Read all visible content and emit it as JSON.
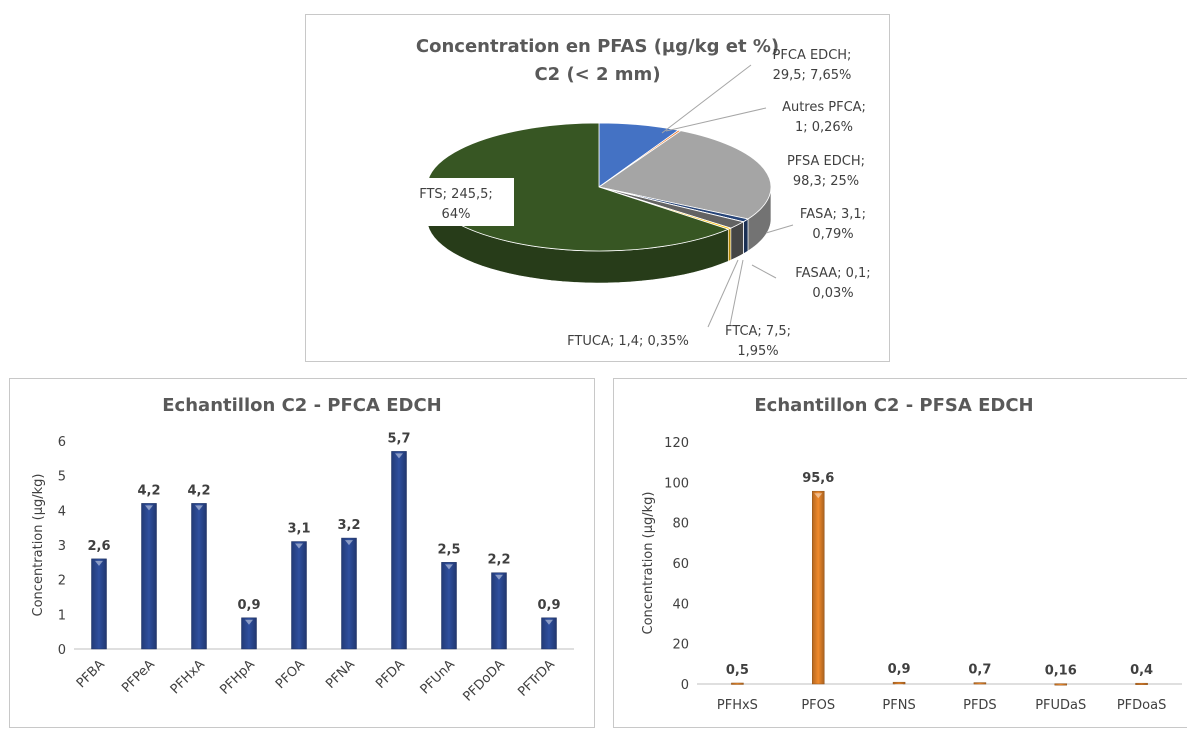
{
  "chart_data": [
    {
      "type": "pie",
      "title": "Concentration en PFAS (µg/kg et %)",
      "subtitle": "C2 (< 2 mm)",
      "slices": [
        {
          "name": "PFCA EDCH",
          "value": 29.5,
          "percent": 7.65,
          "label_line1": "PFCA EDCH;",
          "label_line2": "29,5; 7,65%",
          "color": "#4472c4"
        },
        {
          "name": "Autres PFCA",
          "value": 1,
          "percent": 0.26,
          "label_line1": "Autres PFCA;",
          "label_line2": "1; 0,26%",
          "color": "#ed7d31"
        },
        {
          "name": "PFSA EDCH",
          "value": 98.3,
          "percent": 25,
          "label_line1": "PFSA EDCH;",
          "label_line2": "98,3; 25%",
          "color": "#a5a5a5"
        },
        {
          "name": "FASA",
          "value": 3.1,
          "percent": 0.79,
          "label_line1": "FASA; 3,1;",
          "label_line2": "0,79%",
          "color": "#264478"
        },
        {
          "name": "FASAA",
          "value": 0.1,
          "percent": 0.03,
          "label_line1": "FASAA; 0,1;",
          "label_line2": "0,03%",
          "color": "#9e480e"
        },
        {
          "name": "FTCA",
          "value": 7.5,
          "percent": 1.95,
          "label_line1": "FTCA; 7,5;",
          "label_line2": "1,95%",
          "color": "#636363"
        },
        {
          "name": "FTUCA",
          "value": 1.4,
          "percent": 0.35,
          "label_line1": "FTUCA; 1,4; 0,35%",
          "label_line2": "",
          "color": "#ffc000"
        },
        {
          "name": "FTS",
          "value": 245.5,
          "percent": 64,
          "label_line1": "FTS; 245,5;",
          "label_line2": "64%",
          "color": "#375623"
        }
      ]
    },
    {
      "type": "bar",
      "title": "Echantillon C2 - PFCA EDCH",
      "ylabel": "Concentration (µg/kg)",
      "ylim": [
        0,
        6
      ],
      "yticks": [
        0,
        1,
        2,
        3,
        4,
        5,
        6
      ],
      "categories": [
        "PFBA",
        "PFPeA",
        "PFHxA",
        "PFHpA",
        "PFOA",
        "PFNA",
        "PFDA",
        "PFUnA",
        "PFDoDA",
        "PFTrDA"
      ],
      "values": [
        2.6,
        4.2,
        4.2,
        0.9,
        3.1,
        3.2,
        5.7,
        2.5,
        2.2,
        0.9
      ],
      "value_labels": [
        "2,6",
        "4,2",
        "4,2",
        "0,9",
        "3,1",
        "3,2",
        "5,7",
        "2,5",
        "2,2",
        "0,9"
      ],
      "color": "#2f4f9e"
    },
    {
      "type": "bar",
      "title": "Echantillon C2 - PFSA EDCH",
      "ylabel": "Concentration (µg/kg)",
      "ylim": [
        0,
        120
      ],
      "yticks": [
        0,
        20,
        40,
        60,
        80,
        100,
        120
      ],
      "categories": [
        "PFHxS",
        "PFOS",
        "PFNS",
        "PFDS",
        "PFUDaS",
        "PFDoaS"
      ],
      "values": [
        0.5,
        95.6,
        0.9,
        0.7,
        0.16,
        0.4
      ],
      "value_labels": [
        "0,5",
        "95,6",
        "0,9",
        "0,7",
        "0,16",
        "0,4"
      ],
      "color": "#f08a2c"
    }
  ]
}
